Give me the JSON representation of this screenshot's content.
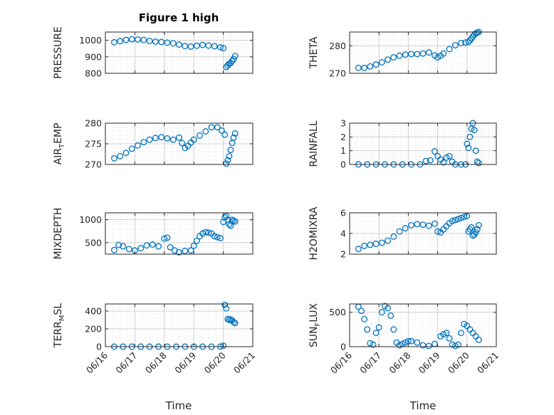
{
  "figure": {
    "title": "Figure 1 high",
    "xlabel": "Time"
  },
  "colors": {
    "marker": "#0072BD",
    "axis": "#262626",
    "grid_major": "#d0d0d0",
    "grid_minor": "#e6e6e6"
  },
  "chart_data": [
    {
      "type": "scatter",
      "title": "Figure 1 high",
      "xlabel": "",
      "ylabel": "PRESSURE",
      "xlim": [
        0,
        5
      ],
      "ylim": [
        800,
        1050
      ],
      "yticks": [
        800,
        900,
        1000
      ],
      "xtick_labels": [
        "06/16",
        "06/17",
        "06/18",
        "06/19",
        "06/20",
        "06/21"
      ],
      "show_xticklabels": false,
      "grid": true,
      "x": [
        0.3,
        0.5,
        0.7,
        0.9,
        1.1,
        1.3,
        1.5,
        1.7,
        1.9,
        2.1,
        2.3,
        2.5,
        2.7,
        2.9,
        3.1,
        3.3,
        3.5,
        3.7,
        3.9,
        4.0,
        4.1,
        4.15,
        4.2,
        4.25,
        4.3,
        4.35,
        4.4
      ],
      "y": [
        988,
        995,
        1002,
        1006,
        1005,
        1002,
        996,
        992,
        990,
        986,
        982,
        974,
        965,
        962,
        967,
        972,
        968,
        964,
        958,
        952,
        838,
        848,
        858,
        862,
        875,
        887,
        905
      ]
    },
    {
      "type": "scatter",
      "title": "",
      "xlabel": "",
      "ylabel": "THETA",
      "xlim": [
        0,
        5
      ],
      "ylim": [
        270,
        285
      ],
      "yticks": [
        270,
        280
      ],
      "xtick_labels": [
        "06/16",
        "06/17",
        "06/18",
        "06/19",
        "06/20",
        "06/21"
      ],
      "show_xticklabels": false,
      "grid": true,
      "x": [
        0.3,
        0.5,
        0.7,
        0.9,
        1.1,
        1.3,
        1.5,
        1.7,
        1.9,
        2.1,
        2.3,
        2.5,
        2.7,
        2.9,
        3.0,
        3.1,
        3.2,
        3.4,
        3.6,
        3.8,
        3.95,
        4.05,
        4.1,
        4.15,
        4.2,
        4.25,
        4.3,
        4.35,
        4.4
      ],
      "y": [
        272,
        272,
        272.5,
        273.2,
        274,
        275,
        275.8,
        276.4,
        276.8,
        277,
        277,
        277.2,
        277.6,
        276.5,
        275.8,
        276.4,
        277.2,
        278.8,
        280.2,
        281,
        281.2,
        281.4,
        282,
        282.6,
        283.4,
        284,
        284.5,
        284.8,
        285
      ]
    },
    {
      "type": "scatter",
      "title": "",
      "xlabel": "",
      "ylabel": "AIR_TEMP",
      "ylabel_parts": {
        "base": "AIR",
        "sub": "T",
        "rest": "EMP"
      },
      "xlim": [
        0,
        5
      ],
      "ylim": [
        270,
        280
      ],
      "yticks": [
        270,
        275,
        280
      ],
      "xtick_labels": [
        "06/16",
        "06/17",
        "06/18",
        "06/19",
        "06/20",
        "06/21"
      ],
      "show_xticklabels": false,
      "grid": true,
      "x": [
        0.3,
        0.5,
        0.7,
        0.9,
        1.1,
        1.3,
        1.5,
        1.7,
        1.9,
        2.1,
        2.3,
        2.5,
        2.6,
        2.7,
        2.8,
        2.9,
        3.0,
        3.2,
        3.4,
        3.6,
        3.8,
        3.95,
        4.05,
        4.1,
        4.15,
        4.2,
        4.25,
        4.3,
        4.35,
        4.4
      ],
      "y": [
        271.5,
        272,
        272.8,
        273.8,
        274.6,
        275.4,
        276,
        276.4,
        276.6,
        276.3,
        276,
        276.5,
        275.2,
        274,
        274.5,
        275.3,
        276,
        277,
        278,
        279,
        279,
        278.2,
        277.2,
        270.2,
        271,
        272,
        273.5,
        275.2,
        276.5,
        277.5
      ]
    },
    {
      "type": "scatter",
      "title": "",
      "xlabel": "",
      "ylabel": "RAINFALL",
      "xlim": [
        0,
        5
      ],
      "ylim": [
        0,
        3
      ],
      "yticks": [
        0,
        1,
        2,
        3
      ],
      "xtick_labels": [
        "06/16",
        "06/17",
        "06/18",
        "06/19",
        "06/20",
        "06/21"
      ],
      "show_xticklabels": false,
      "grid": true,
      "x": [
        0.3,
        0.6,
        0.9,
        1.2,
        1.5,
        1.8,
        2.1,
        2.4,
        2.6,
        2.75,
        2.9,
        3.0,
        3.1,
        3.2,
        3.3,
        3.4,
        3.5,
        3.6,
        3.8,
        3.95,
        4.0,
        4.05,
        4.1,
        4.15,
        4.2,
        4.25,
        4.3,
        4.35,
        4.4
      ],
      "y": [
        0,
        0,
        0,
        0,
        0,
        0,
        0,
        0,
        0.25,
        0.3,
        0.95,
        0.6,
        0.35,
        0.15,
        0.5,
        0.6,
        0.2,
        0,
        0,
        0,
        1.5,
        1.2,
        2.0,
        2.6,
        3.0,
        2.5,
        1.0,
        0.2,
        0.1
      ]
    },
    {
      "type": "scatter",
      "title": "",
      "xlabel": "",
      "ylabel": "MIXDEPTH",
      "xlim": [
        0,
        5
      ],
      "ylim": [
        250,
        1150
      ],
      "yticks": [
        500,
        1000
      ],
      "xtick_labels": [
        "06/16",
        "06/17",
        "06/18",
        "06/19",
        "06/20",
        "06/21"
      ],
      "show_xticklabels": false,
      "grid": true,
      "x": [
        0.3,
        0.45,
        0.6,
        0.8,
        1.0,
        1.2,
        1.4,
        1.6,
        1.8,
        2.0,
        2.1,
        2.2,
        2.35,
        2.5,
        2.7,
        2.9,
        3.0,
        3.1,
        3.2,
        3.3,
        3.4,
        3.5,
        3.6,
        3.7,
        3.8,
        3.9,
        4.0,
        4.05,
        4.1,
        4.15,
        4.2,
        4.25,
        4.3,
        4.35,
        4.4
      ],
      "y": [
        340,
        450,
        420,
        360,
        330,
        380,
        440,
        460,
        420,
        590,
        610,
        400,
        330,
        290,
        320,
        330,
        430,
        540,
        640,
        700,
        730,
        720,
        700,
        640,
        620,
        600,
        950,
        1050,
        1080,
        1000,
        900,
        870,
        1000,
        980,
        960
      ]
    },
    {
      "type": "scatter",
      "title": "",
      "xlabel": "",
      "ylabel": "H2OMIXRA",
      "xlim": [
        0,
        5
      ],
      "ylim": [
        2,
        6
      ],
      "yticks": [
        2,
        4,
        6
      ],
      "xtick_labels": [
        "06/16",
        "06/17",
        "06/18",
        "06/19",
        "06/20",
        "06/21"
      ],
      "show_xticklabels": false,
      "grid": true,
      "x": [
        0.3,
        0.5,
        0.7,
        0.9,
        1.1,
        1.3,
        1.5,
        1.7,
        1.9,
        2.1,
        2.3,
        2.5,
        2.7,
        2.9,
        3.0,
        3.1,
        3.2,
        3.3,
        3.4,
        3.5,
        3.6,
        3.7,
        3.8,
        3.9,
        4.0,
        4.05,
        4.1,
        4.15,
        4.2,
        4.25,
        4.3,
        4.35,
        4.4
      ],
      "y": [
        2.5,
        2.8,
        2.9,
        3.0,
        3.1,
        3.3,
        3.7,
        4.2,
        4.5,
        4.8,
        4.9,
        4.85,
        4.75,
        4.95,
        4.2,
        4.1,
        4.4,
        4.7,
        5.0,
        5.2,
        5.3,
        5.4,
        5.5,
        5.6,
        5.7,
        4.2,
        4.4,
        4.6,
        3.8,
        3.9,
        4.1,
        4.4,
        4.8
      ]
    },
    {
      "type": "scatter",
      "title": "",
      "xlabel": "",
      "ylabel": "TERR_MSL",
      "ylabel_parts": {
        "base": "TERR",
        "sub": "M",
        "rest": "SL"
      },
      "xlim": [
        0,
        5
      ],
      "ylim": [
        0,
        480
      ],
      "yticks": [
        0,
        200,
        400
      ],
      "xtick_labels": [
        "06/16",
        "06/17",
        "06/18",
        "06/19",
        "06/20",
        "06/21"
      ],
      "show_xticklabels": true,
      "grid": true,
      "x": [
        0.3,
        0.6,
        0.9,
        1.2,
        1.5,
        1.8,
        2.1,
        2.4,
        2.7,
        3.0,
        3.3,
        3.6,
        3.9,
        4.0,
        4.05,
        4.1,
        4.15,
        4.2,
        4.25,
        4.3,
        4.35,
        4.4
      ],
      "y": [
        0,
        0,
        0,
        0,
        0,
        0,
        0,
        0,
        0,
        0,
        0,
        0,
        0,
        10,
        470,
        430,
        310,
        300,
        305,
        295,
        275,
        265
      ]
    },
    {
      "type": "scatter",
      "title": "",
      "xlabel": "",
      "ylabel": "SUN_FLUX",
      "ylabel_parts": {
        "base": "SUN",
        "sub": "F",
        "rest": "LUX"
      },
      "xlim": [
        0,
        5
      ],
      "ylim": [
        0,
        620
      ],
      "yticks": [
        0,
        500
      ],
      "xtick_labels": [
        "06/16",
        "06/17",
        "06/18",
        "06/19",
        "06/20",
        "06/21"
      ],
      "show_xticklabels": true,
      "grid": true,
      "x": [
        0.3,
        0.4,
        0.5,
        0.6,
        0.7,
        0.8,
        0.9,
        1.0,
        1.1,
        1.2,
        1.3,
        1.4,
        1.5,
        1.6,
        1.7,
        1.8,
        1.9,
        2.0,
        2.1,
        2.3,
        2.5,
        2.7,
        2.9,
        3.1,
        3.2,
        3.3,
        3.4,
        3.5,
        3.6,
        3.7,
        3.8,
        3.9,
        4.0,
        4.1,
        4.2,
        4.3,
        4.4
      ],
      "y": [
        580,
        520,
        400,
        250,
        50,
        30,
        200,
        280,
        500,
        590,
        560,
        450,
        250,
        60,
        20,
        40,
        60,
        80,
        80,
        60,
        20,
        10,
        40,
        150,
        180,
        200,
        120,
        30,
        10,
        30,
        200,
        330,
        300,
        250,
        200,
        150,
        100
      ]
    }
  ]
}
